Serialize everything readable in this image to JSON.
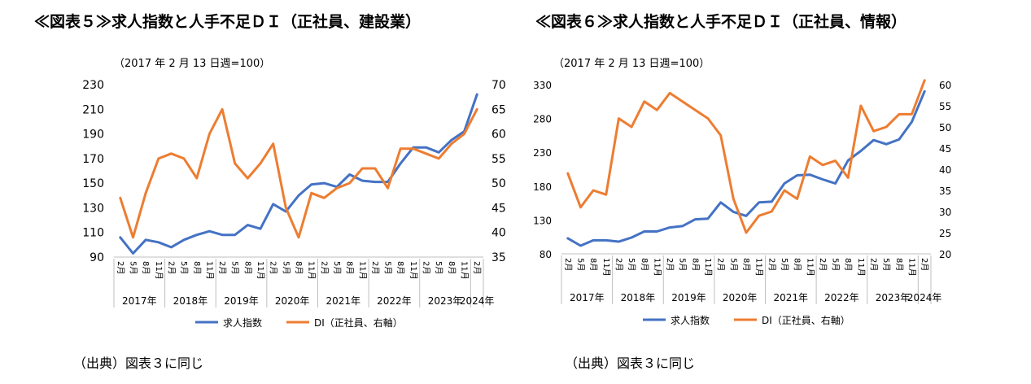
{
  "charts": [
    {
      "title": "≪図表５≫求人指数と人手不足ＤＩ（正社員、建設業）",
      "unit_label": "（2017 年 2 月 13 日週=100）",
      "source": "（出典）図表３に同じ",
      "legend": {
        "series1": "求人指数",
        "series2": "DI（正社員、右軸）"
      },
      "colors": {
        "series1": "#4472C4",
        "series2": "#ED7D31"
      }
    },
    {
      "title": "≪図表６≫求人指数と人手不足ＤＩ（正社員、情報）",
      "unit_label": "（2017 年 2 月 13 日週=100）",
      "source": "（出典）図表３に同じ",
      "legend": {
        "series1": "求人指数",
        "series2": "DI（正社員、右軸）"
      },
      "colors": {
        "series1": "#4472C4",
        "series2": "#ED7D31"
      }
    }
  ],
  "chart_data": [
    {
      "type": "line",
      "categories": [
        "2月",
        "5月",
        "8月",
        "11月",
        "2月",
        "5月",
        "8月",
        "11月",
        "2月",
        "5月",
        "8月",
        "11月",
        "2月",
        "5月",
        "8月",
        "11月",
        "2月",
        "5月",
        "8月",
        "11月",
        "2月",
        "5月",
        "8月",
        "11月",
        "2月",
        "5月",
        "8月",
        "11月",
        "2月"
      ],
      "year_labels": [
        {
          "label": "2017年",
          "start": 0,
          "end": 3
        },
        {
          "label": "2018年",
          "start": 4,
          "end": 7
        },
        {
          "label": "2019年",
          "start": 8,
          "end": 11
        },
        {
          "label": "2020年",
          "start": 12,
          "end": 15
        },
        {
          "label": "2021年",
          "start": 16,
          "end": 19
        },
        {
          "label": "2022年",
          "start": 20,
          "end": 23
        },
        {
          "label": "2023年",
          "start": 24,
          "end": 27
        },
        {
          "label": "2024年",
          "start": 28,
          "end": 28
        }
      ],
      "y_left": {
        "min": 90,
        "max": 230,
        "ticks": [
          90,
          110,
          130,
          150,
          170,
          190,
          210,
          230
        ]
      },
      "y_right": {
        "min": 35,
        "max": 70,
        "ticks": [
          35,
          40,
          45,
          50,
          55,
          60,
          65,
          70
        ]
      },
      "series": [
        {
          "name": "求人指数",
          "axis": "left",
          "values": [
            106,
            93,
            104,
            102,
            98,
            104,
            108,
            111,
            108,
            108,
            116,
            113,
            133,
            127,
            140,
            149,
            150,
            147,
            157,
            152,
            151,
            151,
            166,
            179,
            179,
            175,
            185,
            192,
            222
          ]
        },
        {
          "name": "DI（正社員、右軸）",
          "axis": "right",
          "values": [
            47,
            39,
            48,
            55,
            56,
            55,
            51,
            60,
            65,
            54,
            51,
            54,
            58,
            45,
            39,
            48,
            47,
            49,
            50,
            53,
            53,
            49,
            57,
            57,
            56,
            55,
            58,
            60,
            65
          ]
        }
      ],
      "grid": false,
      "legend_position": "bottom"
    },
    {
      "type": "line",
      "categories": [
        "2月",
        "5月",
        "8月",
        "11月",
        "2月",
        "5月",
        "8月",
        "11月",
        "2月",
        "5月",
        "8月",
        "11月",
        "2月",
        "5月",
        "8月",
        "11月",
        "2月",
        "5月",
        "8月",
        "11月",
        "2月",
        "5月",
        "8月",
        "11月",
        "2月",
        "5月",
        "8月",
        "11月",
        "2月"
      ],
      "year_labels": [
        {
          "label": "2017年",
          "start": 0,
          "end": 3
        },
        {
          "label": "2018年",
          "start": 4,
          "end": 7
        },
        {
          "label": "2019年",
          "start": 8,
          "end": 11
        },
        {
          "label": "2020年",
          "start": 12,
          "end": 15
        },
        {
          "label": "2021年",
          "start": 16,
          "end": 19
        },
        {
          "label": "2022年",
          "start": 20,
          "end": 23
        },
        {
          "label": "2023年",
          "start": 24,
          "end": 27
        },
        {
          "label": "2024年",
          "start": 28,
          "end": 28
        }
      ],
      "y_left": {
        "min": 80,
        "max": 330,
        "ticks": [
          80,
          130,
          180,
          230,
          280,
          330
        ]
      },
      "y_right": {
        "min": 20,
        "max": 60,
        "ticks": [
          20,
          25,
          30,
          35,
          40,
          45,
          50,
          55,
          60
        ]
      },
      "series": [
        {
          "name": "求人指数",
          "axis": "left",
          "values": [
            103,
            92,
            100,
            100,
            98,
            104,
            113,
            113,
            119,
            121,
            131,
            132,
            156,
            142,
            136,
            156,
            157,
            184,
            196,
            197,
            190,
            184,
            218,
            232,
            248,
            242,
            249,
            275,
            320
          ]
        },
        {
          "name": "DI（正社員、右軸）",
          "axis": "right",
          "values": [
            39,
            31,
            35,
            34,
            52,
            50,
            56,
            54,
            58,
            56,
            54,
            52,
            48,
            33,
            25,
            29,
            30,
            35,
            33,
            43,
            41,
            42,
            38,
            55,
            49,
            50,
            53,
            53,
            61
          ]
        }
      ],
      "grid": false,
      "legend_position": "bottom"
    }
  ]
}
